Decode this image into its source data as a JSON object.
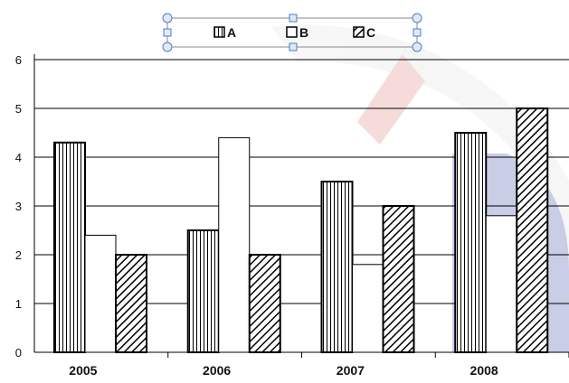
{
  "chart_data": {
    "type": "bar",
    "categories": [
      "2005",
      "2006",
      "2007",
      "2008"
    ],
    "series": [
      {
        "name": "A",
        "values": [
          4.3,
          2.5,
          3.5,
          4.5
        ],
        "pattern": "vertical-lines"
      },
      {
        "name": "B",
        "values": [
          2.4,
          4.4,
          1.8,
          2.8
        ],
        "pattern": "none"
      },
      {
        "name": "C",
        "values": [
          2.0,
          2.0,
          3.0,
          5.0
        ],
        "pattern": "diagonal-lines"
      }
    ],
    "ylim": [
      0,
      6
    ],
    "yticks": [
      "0",
      "1",
      "2",
      "3",
      "4",
      "5",
      "6"
    ],
    "grid": true,
    "legend_position": "top-center",
    "title": "",
    "xlabel": "",
    "ylabel": "",
    "colors": {
      "bar_stroke": "#000000",
      "bar_fill": "#ffffff",
      "grid": "#000000",
      "handle": "#4a7fc2"
    }
  }
}
